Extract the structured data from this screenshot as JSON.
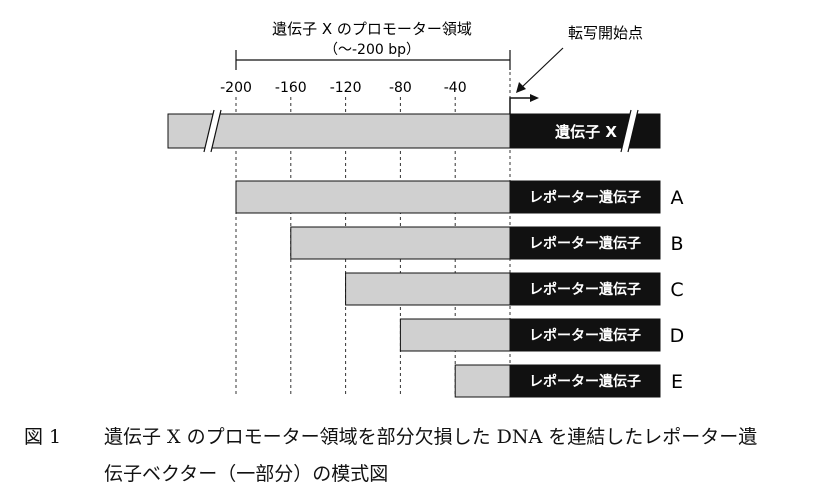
{
  "header": {
    "region_title": "遺伝子 X のプロモーター領域",
    "region_range": "（〜-200 bp）",
    "tss_label": "転写開始点"
  },
  "ticks": [
    "-200",
    "-160",
    "-120",
    "-80",
    "-40"
  ],
  "gene_x": {
    "label": "遺伝子 X"
  },
  "constructs": [
    {
      "id": "A",
      "label": "レポーター遺伝子",
      "promoter_start": -200
    },
    {
      "id": "B",
      "label": "レポーター遺伝子",
      "promoter_start": -160
    },
    {
      "id": "C",
      "label": "レポーター遺伝子",
      "promoter_start": -120
    },
    {
      "id": "D",
      "label": "レポーター遺伝子",
      "promoter_start": -80
    },
    {
      "id": "E",
      "label": "レポーター遺伝子",
      "promoter_start": -40
    }
  ],
  "caption": {
    "number": "図 1",
    "line1": "遺伝子 X のプロモーター領域を部分欠損した DNA を連結したレポーター遺",
    "line2": "伝子ベクター（一部分）の模式図"
  },
  "colors": {
    "promoter_fill": "#d0d0d0",
    "reporter_fill": "#111111",
    "line": "#111111"
  }
}
